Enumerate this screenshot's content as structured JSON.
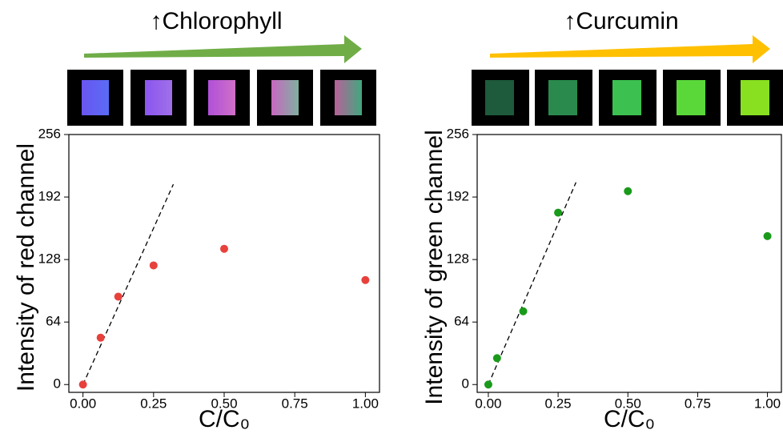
{
  "chart_data": [
    {
      "type": "scatter",
      "title": "↑Chlorophyll",
      "x_label": "C/C₀",
      "y_label": "Intensity of red channel",
      "x": [
        0,
        0.0625,
        0.125,
        0.25,
        0.5,
        1.0
      ],
      "values": [
        0,
        48,
        90,
        122,
        139,
        107
      ],
      "color": "#e8413c",
      "fit_line": {
        "x": [
          0,
          0.32
        ],
        "values": [
          0,
          205
        ]
      },
      "xlim": [
        -0.05,
        1.05
      ],
      "ylim": [
        -8,
        256
      ],
      "xticks": [
        {
          "value": 0,
          "label": "0.00"
        },
        {
          "value": 0.25,
          "label": "0.25"
        },
        {
          "value": 0.5,
          "label": "0.50"
        },
        {
          "value": 0.75,
          "label": "0.75"
        },
        {
          "value": 1,
          "label": "1.00"
        }
      ],
      "yticks": [
        0,
        64,
        128,
        192,
        256
      ]
    },
    {
      "type": "scatter",
      "title": "↑Curcumin",
      "x_label": "C/C₀",
      "y_label": "Intensity of green channel",
      "x": [
        0,
        0.03125,
        0.125,
        0.25,
        0.5,
        1.0
      ],
      "values": [
        0,
        27,
        75,
        176,
        198,
        152
      ],
      "color": "#1a9a1a",
      "fit_line": {
        "x": [
          0,
          0.314
        ],
        "values": [
          0,
          207
        ]
      },
      "xlim": [
        -0.04,
        1.05
      ],
      "ylim": [
        -8,
        256
      ],
      "xticks": [
        {
          "value": 0,
          "label": "0.00"
        },
        {
          "value": 0.25,
          "label": "0.25"
        },
        {
          "value": 0.5,
          "label": "0.50"
        },
        {
          "value": 0.75,
          "label": "0.75"
        },
        {
          "value": 1,
          "label": "1.00"
        }
      ],
      "yticks": [
        0,
        64,
        128,
        192,
        256
      ]
    }
  ]
}
